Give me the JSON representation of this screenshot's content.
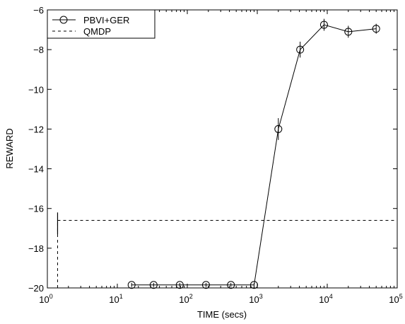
{
  "chart_data": {
    "type": "line",
    "title": "",
    "xlabel": "TIME (secs)",
    "ylabel": "REWARD",
    "xscale": "log",
    "xlim": [
      1,
      100000
    ],
    "ylim": [
      -20,
      -6
    ],
    "x_ticks": [
      {
        "value": 1,
        "base": "10",
        "exp": "0"
      },
      {
        "value": 10,
        "base": "10",
        "exp": "1"
      },
      {
        "value": 100,
        "base": "10",
        "exp": "2"
      },
      {
        "value": 1000,
        "base": "10",
        "exp": "3"
      },
      {
        "value": 10000,
        "base": "10",
        "exp": "4"
      },
      {
        "value": 100000,
        "base": "10",
        "exp": "5"
      }
    ],
    "y_ticks": [
      {
        "value": -6,
        "label": "−6"
      },
      {
        "value": -8,
        "label": "−8"
      },
      {
        "value": -10,
        "label": "−10"
      },
      {
        "value": -12,
        "label": "−12"
      },
      {
        "value": -14,
        "label": "−14"
      },
      {
        "value": -16,
        "label": "−16"
      },
      {
        "value": -18,
        "label": "−18"
      },
      {
        "value": -20,
        "label": "−20"
      }
    ],
    "grid": false,
    "legend_position": "top-left",
    "series": [
      {
        "name": "PBVI+GER",
        "style": "solid",
        "marker": "circle",
        "color": "#000000",
        "x": [
          16,
          33,
          78,
          185,
          420,
          900,
          2000,
          4100,
          9000,
          20000,
          50000
        ],
        "y": [
          -19.85,
          -19.85,
          -19.85,
          -19.85,
          -19.85,
          -19.85,
          -12.0,
          -8.0,
          -6.75,
          -7.1,
          -6.95
        ],
        "err": [
          0.1,
          0.1,
          0.1,
          0.1,
          0.1,
          0.1,
          0.55,
          0.4,
          0.3,
          0.3,
          0.25
        ]
      },
      {
        "name": "QMDP",
        "style": "dashed",
        "marker": "none",
        "color": "#000000",
        "x": [
          1.4,
          100000
        ],
        "y": [
          -16.6,
          -16.6
        ],
        "vertical_from": -20,
        "err_at_start": [
          -17.3,
          -16.2
        ]
      }
    ]
  }
}
